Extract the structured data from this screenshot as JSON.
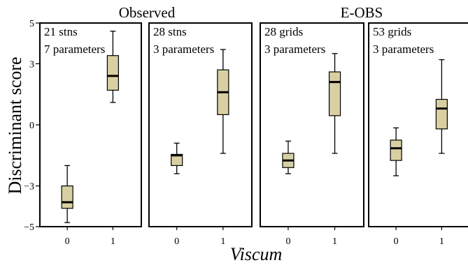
{
  "chart_data": {
    "type": "box",
    "group_titles": [
      "Observed",
      "E-OBS"
    ],
    "ylabel": "Discriminant score",
    "xlabel": "Viscum",
    "ylim": [
      -5,
      5
    ],
    "yticks": [
      5,
      3,
      0,
      -3,
      -5
    ],
    "ytick_labels": [
      "5",
      "3",
      "0",
      "−3",
      "−5"
    ],
    "categories": [
      "0",
      "1"
    ],
    "colors": {
      "box_fill": "#d8d0a2",
      "stroke": "#000000"
    },
    "panels": [
      {
        "label_line1": "21 stns",
        "label_line2": "7 parameters",
        "boxes": [
          {
            "category": "0",
            "whisker_low": -4.8,
            "q1": -4.1,
            "median": -3.8,
            "q3": -3.0,
            "whisker_high": -2.0
          },
          {
            "category": "1",
            "whisker_low": 1.1,
            "q1": 1.7,
            "median": 2.4,
            "q3": 3.4,
            "whisker_high": 4.6
          }
        ]
      },
      {
        "label_line1": "28 stns",
        "label_line2": "3 parameters",
        "boxes": [
          {
            "category": "0",
            "whisker_low": -2.4,
            "q1": -2.0,
            "median": -1.5,
            "q3": -1.45,
            "whisker_high": -0.9
          },
          {
            "category": "1",
            "whisker_low": -1.4,
            "q1": 0.5,
            "median": 1.6,
            "q3": 2.7,
            "whisker_high": 3.7
          }
        ]
      },
      {
        "label_line1": "28 grids",
        "label_line2": "3 parameters",
        "boxes": [
          {
            "category": "0",
            "whisker_low": -2.4,
            "q1": -2.1,
            "median": -1.75,
            "q3": -1.4,
            "whisker_high": -0.8
          },
          {
            "category": "1",
            "whisker_low": -1.4,
            "q1": 0.45,
            "median": 2.1,
            "q3": 2.6,
            "whisker_high": 3.5
          }
        ]
      },
      {
        "label_line1": "53 grids",
        "label_line2": "3 parameters",
        "boxes": [
          {
            "category": "0",
            "whisker_low": -2.5,
            "q1": -1.75,
            "median": -1.15,
            "q3": -0.75,
            "whisker_high": -0.15
          },
          {
            "category": "1",
            "whisker_low": -1.4,
            "q1": -0.2,
            "median": 0.8,
            "q3": 1.25,
            "whisker_high": 3.2
          }
        ]
      }
    ]
  }
}
